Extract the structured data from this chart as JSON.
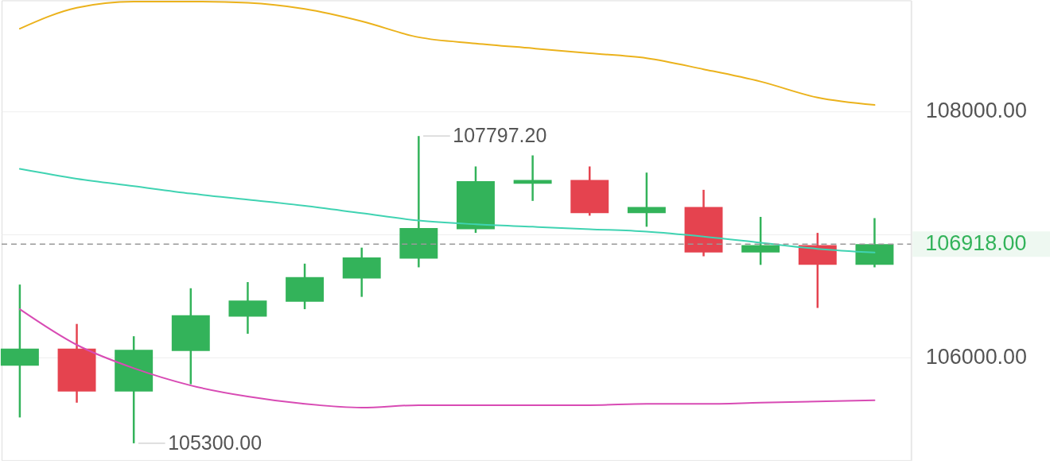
{
  "chart_data": {
    "type": "candlestick",
    "categories": [
      null,
      null,
      null,
      null,
      null,
      null,
      null,
      null,
      null,
      null,
      null,
      null,
      null,
      null,
      null,
      null
    ],
    "ohlc": [
      [
        105930,
        106590,
        105510,
        106070
      ],
      [
        106070,
        106270,
        105630,
        105720
      ],
      [
        105720,
        106170,
        105300,
        106060
      ],
      [
        106050,
        106560,
        105780,
        106340
      ],
      [
        106330,
        106610,
        106190,
        106460
      ],
      [
        106450,
        106760,
        106390,
        106650
      ],
      [
        106640,
        106890,
        106490,
        106810
      ],
      [
        106800,
        107797.2,
        106730,
        107050
      ],
      [
        107040,
        107550,
        107010,
        107430
      ],
      [
        107410,
        107640,
        107270,
        107440
      ],
      [
        107440,
        107550,
        107150,
        107170
      ],
      [
        107170,
        107500,
        107060,
        107220
      ],
      [
        107220,
        107360,
        106820,
        106850
      ],
      [
        106850,
        107140,
        106750,
        106910
      ],
      [
        106910,
        107010,
        106400,
        106750
      ],
      [
        106750,
        107130,
        106730,
        106918
      ]
    ],
    "colors": [
      "#33b35a",
      "#e5434f",
      "#33b35a",
      "#33b35a",
      "#33b35a",
      "#33b35a",
      "#33b35a",
      "#33b35a",
      "#33b35a",
      "#33b35a",
      "#e5434f",
      "#33b35a",
      "#e5434f",
      "#33b35a",
      "#e5434f",
      "#33b35a"
    ],
    "series": [
      {
        "type": "line",
        "color": "#ebb21c",
        "values": [
          108670,
          108840,
          108890,
          108890,
          108880,
          108830,
          108730,
          108600,
          108550,
          108510,
          108470,
          108430,
          108340,
          108240,
          108110,
          108050
        ]
      },
      {
        "type": "line",
        "color": "#40d3b2",
        "values": [
          107530,
          107450,
          107390,
          107330,
          107280,
          107230,
          107170,
          107110,
          107080,
          107060,
          107040,
          107020,
          106980,
          106930,
          106880,
          106850
        ]
      },
      {
        "type": "line",
        "color": "#d84bb4",
        "values": [
          106390,
          106100,
          105910,
          105770,
          105680,
          105620,
          105590,
          105610,
          105610,
          105610,
          105610,
          105620,
          105620,
          105630,
          105640,
          105650
        ]
      }
    ],
    "ylim": [
      105160,
      108900
    ],
    "yticks": [
      {
        "value": 106000,
        "label": "106000.00"
      },
      {
        "value": 107000,
        "label": null
      },
      {
        "value": 108000,
        "label": "108000.00"
      }
    ],
    "ref_lines": [
      {
        "axis": "y",
        "value": 106918,
        "label": "106918.00",
        "color": "#999999",
        "line_style": "dashed"
      }
    ],
    "annotations": [
      "107797.20",
      "105300.00"
    ],
    "grid": "y",
    "tick_labels": "y"
  }
}
